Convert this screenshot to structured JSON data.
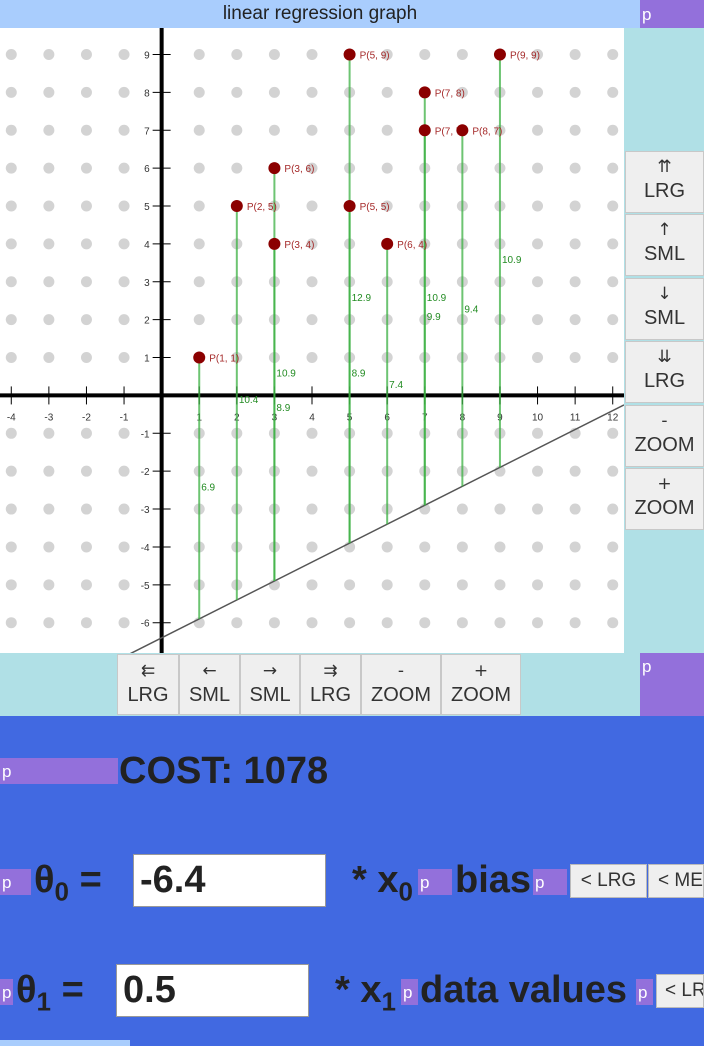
{
  "header": {
    "title": "linear regression graph",
    "tag": "p"
  },
  "graph": {
    "points": [
      {
        "label": "P(1, 1)",
        "x": 1,
        "y": 1
      },
      {
        "label": "P(2, 5)",
        "x": 2,
        "y": 5
      },
      {
        "label": "P(3, 6)",
        "x": 3,
        "y": 6
      },
      {
        "label": "P(3, 4)",
        "x": 3,
        "y": 4
      },
      {
        "label": "P(5, 9)",
        "x": 5,
        "y": 9
      },
      {
        "label": "P(5, 5)",
        "x": 5,
        "y": 5
      },
      {
        "label": "P(6, 4)",
        "x": 6,
        "y": 4
      },
      {
        "label": "P(7, 8)",
        "x": 7,
        "y": 8
      },
      {
        "label": "P(7, 7)",
        "x": 7,
        "y": 7
      },
      {
        "label": "P(8, 7)",
        "x": 8,
        "y": 7
      },
      {
        "label": "P(9, 9)",
        "x": 9,
        "y": 9
      }
    ],
    "residuals": [
      {
        "text": "6.9",
        "x": 1,
        "y": -2.4
      },
      {
        "text": "10.4",
        "x": 2,
        "y": -0.1
      },
      {
        "text": "10.9",
        "x": 3,
        "y": 0.6
      },
      {
        "text": "8.9",
        "x": 3,
        "y": -0.3
      },
      {
        "text": "12.9",
        "x": 5,
        "y": 2.6
      },
      {
        "text": "8.9",
        "x": 5,
        "y": 0.6
      },
      {
        "text": "7.4",
        "x": 6,
        "y": 0.3
      },
      {
        "text": "10.9",
        "x": 7,
        "y": 2.6
      },
      {
        "text": "9.9",
        "x": 7,
        "y": 2.1
      },
      {
        "text": "9.4",
        "x": 8,
        "y": 2.3
      },
      {
        "text": "10.9",
        "x": 9,
        "y": 3.6
      }
    ],
    "x_ticks": [
      "-4",
      "-3",
      "-2",
      "-1",
      "1",
      "2",
      "3",
      "4",
      "5",
      "6",
      "7",
      "8",
      "9",
      "10",
      "11",
      "12"
    ],
    "y_ticks": [
      "9",
      "8",
      "7",
      "6",
      "5",
      "4",
      "3",
      "2",
      "1",
      "-1",
      "-2",
      "-3",
      "-4",
      "-5",
      "-6"
    ],
    "xlim": [
      -4.3,
      12.3
    ],
    "ylim": [
      -6.8,
      9.7
    ],
    "line": {
      "theta0": -6.4,
      "theta1": 0.5
    },
    "colors": {
      "point": "#8b0000",
      "label": "#a52a2a",
      "stem": "#3cb043",
      "residual": "#228b22",
      "axis": "#000000",
      "grid_dot": "#d3d3d3",
      "line": "#555555"
    }
  },
  "right_panel": {
    "tag": "p",
    "buttons": [
      {
        "icon": "⇈",
        "label": "LRG"
      },
      {
        "icon": "↑",
        "label": "SML"
      },
      {
        "icon": "↓",
        "label": "SML"
      },
      {
        "icon": "⇊",
        "label": "LRG"
      },
      {
        "icon": "-",
        "label": "ZOOM"
      },
      {
        "icon": "+",
        "label": "ZOOM"
      }
    ]
  },
  "bottom_panel": {
    "tag": "p",
    "buttons": [
      {
        "icon": "⇇",
        "label": "LRG"
      },
      {
        "icon": "←",
        "label": "SML"
      },
      {
        "icon": "→",
        "label": "SML"
      },
      {
        "icon": "⇉",
        "label": "LRG"
      },
      {
        "icon": "-",
        "label": "ZOOM"
      },
      {
        "icon": "+",
        "label": "ZOOM"
      }
    ]
  },
  "cost": {
    "tag": "p",
    "text": "COST: 1078"
  },
  "theta0_row": {
    "tag": "p",
    "theta": "θ",
    "sub": "0",
    "eq": "=",
    "value": "-6.4",
    "times": "* x",
    "xsub": "0",
    "tag2": "p",
    "desc": "bias",
    "tag3": "p",
    "btn1": "< LRG",
    "btn2": "< MED"
  },
  "theta1_row": {
    "tag": "p",
    "theta": "θ",
    "sub": "1",
    "eq": "=",
    "value": "0.5",
    "times": "* x",
    "xsub": "1",
    "tag2": "p",
    "desc": "data values",
    "tag3": "p",
    "btn1": "< LRG"
  }
}
